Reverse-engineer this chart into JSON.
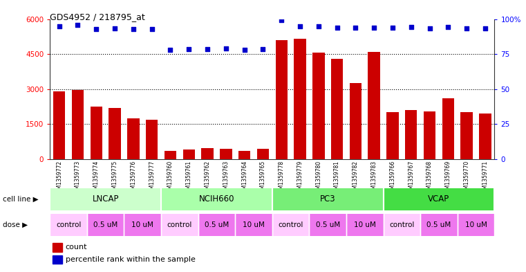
{
  "title": "GDS4952 / 218795_at",
  "samples": [
    "GSM1359772",
    "GSM1359773",
    "GSM1359774",
    "GSM1359775",
    "GSM1359776",
    "GSM1359777",
    "GSM1359760",
    "GSM1359761",
    "GSM1359762",
    "GSM1359763",
    "GSM1359764",
    "GSM1359765",
    "GSM1359778",
    "GSM1359779",
    "GSM1359780",
    "GSM1359781",
    "GSM1359782",
    "GSM1359783",
    "GSM1359766",
    "GSM1359767",
    "GSM1359768",
    "GSM1359769",
    "GSM1359770",
    "GSM1359771"
  ],
  "bar_values": [
    2900,
    2960,
    2250,
    2200,
    1750,
    1700,
    350,
    400,
    460,
    440,
    350,
    430,
    5100,
    5150,
    4550,
    4300,
    3250,
    4600,
    2000,
    2100,
    2050,
    2600,
    2000,
    1950
  ],
  "percentile_values": [
    94.7,
    95.8,
    93.0,
    93.3,
    92.8,
    93.0,
    77.8,
    78.3,
    78.7,
    78.8,
    77.8,
    78.5,
    99.2,
    95.0,
    94.7,
    94.0,
    93.7,
    94.0,
    94.0,
    94.2,
    93.3,
    94.3,
    93.3,
    93.5
  ],
  "bar_color": "#cc0000",
  "dot_color": "#0000cc",
  "ylim_left": [
    0,
    6000
  ],
  "ylim_right": [
    0,
    100
  ],
  "yticks_left": [
    0,
    1500,
    3000,
    4500,
    6000
  ],
  "yticks_right": [
    0,
    25,
    50,
    75,
    100
  ],
  "cell_lines": [
    {
      "label": "LNCAP",
      "start": 0,
      "end": 6,
      "color": "#ccffcc"
    },
    {
      "label": "NCIH660",
      "start": 6,
      "end": 12,
      "color": "#aaffaa"
    },
    {
      "label": "PC3",
      "start": 12,
      "end": 18,
      "color": "#77ee77"
    },
    {
      "label": "VCAP",
      "start": 18,
      "end": 24,
      "color": "#44dd44"
    }
  ],
  "doses": [
    {
      "label": "control",
      "start": 0,
      "end": 2,
      "color": "#ffccff"
    },
    {
      "label": "0.5 uM",
      "start": 2,
      "end": 4,
      "color": "#ee77ee"
    },
    {
      "label": "10 uM",
      "start": 4,
      "end": 6,
      "color": "#ee77ee"
    },
    {
      "label": "control",
      "start": 6,
      "end": 8,
      "color": "#ffccff"
    },
    {
      "label": "0.5 uM",
      "start": 8,
      "end": 10,
      "color": "#ee77ee"
    },
    {
      "label": "10 uM",
      "start": 10,
      "end": 12,
      "color": "#ee77ee"
    },
    {
      "label": "control",
      "start": 12,
      "end": 14,
      "color": "#ffccff"
    },
    {
      "label": "0.5 uM",
      "start": 14,
      "end": 16,
      "color": "#ee77ee"
    },
    {
      "label": "10 uM",
      "start": 16,
      "end": 18,
      "color": "#ee77ee"
    },
    {
      "label": "control",
      "start": 18,
      "end": 20,
      "color": "#ffccff"
    },
    {
      "label": "0.5 uM",
      "start": 20,
      "end": 22,
      "color": "#ee77ee"
    },
    {
      "label": "10 uM",
      "start": 22,
      "end": 24,
      "color": "#ee77ee"
    }
  ],
  "xtick_bg": "#cccccc",
  "bg_color": "#ffffff",
  "legend_bar_color": "#cc0000",
  "legend_dot_color": "#0000cc"
}
